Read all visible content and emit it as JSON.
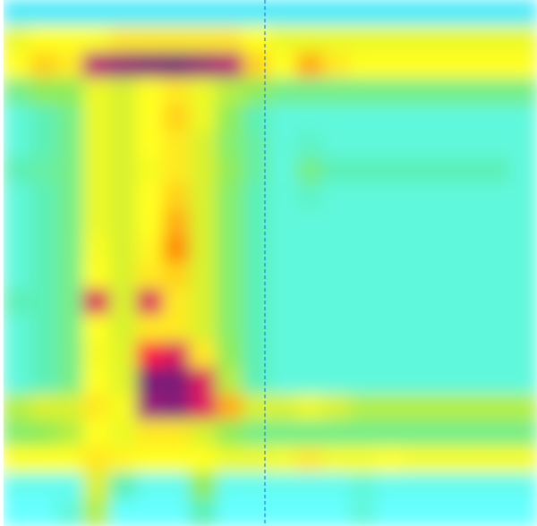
{
  "chart_data": {
    "type": "heatmap",
    "title": "",
    "xlabel": "",
    "ylabel": "",
    "grid": false,
    "legend": "none",
    "colorscale": [
      "#33d6f2",
      "#66ffff",
      "#5cf0b8",
      "#8fec5a",
      "#d8f22e",
      "#ffff22",
      "#ffd21e",
      "#ff8a10",
      "#ff1a4a",
      "#b81c78",
      "#7a1f78"
    ],
    "marker_color": "#1a66ff",
    "rows": 20,
    "cols": 20,
    "values": [
      [
        0.05,
        0.05,
        0.05,
        0.05,
        0.05,
        0.05,
        0.05,
        0.05,
        0.05,
        0.05,
        0.05,
        0.05,
        0.05,
        0.05,
        0.05,
        0.05,
        0.05,
        0.05,
        0.05,
        0.05
      ],
      [
        0.45,
        0.5,
        0.5,
        0.5,
        0.55,
        0.55,
        0.55,
        0.55,
        0.55,
        0.5,
        0.45,
        0.45,
        0.45,
        0.45,
        0.45,
        0.45,
        0.45,
        0.45,
        0.45,
        0.45
      ],
      [
        0.5,
        0.6,
        0.55,
        0.9,
        0.95,
        0.98,
        1.0,
        0.95,
        0.9,
        0.6,
        0.5,
        0.65,
        0.55,
        0.5,
        0.5,
        0.5,
        0.5,
        0.5,
        0.5,
        0.5
      ],
      [
        0.25,
        0.3,
        0.3,
        0.45,
        0.4,
        0.5,
        0.55,
        0.45,
        0.35,
        0.3,
        0.25,
        0.25,
        0.25,
        0.25,
        0.25,
        0.25,
        0.25,
        0.25,
        0.25,
        0.25
      ],
      [
        0.15,
        0.2,
        0.25,
        0.45,
        0.4,
        0.5,
        0.6,
        0.45,
        0.3,
        0.2,
        0.15,
        0.15,
        0.15,
        0.15,
        0.15,
        0.15,
        0.15,
        0.15,
        0.15,
        0.15
      ],
      [
        0.15,
        0.2,
        0.25,
        0.45,
        0.4,
        0.5,
        0.55,
        0.4,
        0.28,
        0.22,
        0.15,
        0.18,
        0.15,
        0.15,
        0.15,
        0.15,
        0.15,
        0.15,
        0.15,
        0.15
      ],
      [
        0.2,
        0.22,
        0.25,
        0.45,
        0.4,
        0.48,
        0.55,
        0.4,
        0.3,
        0.22,
        0.15,
        0.25,
        0.2,
        0.2,
        0.2,
        0.2,
        0.2,
        0.2,
        0.2,
        0.15
      ],
      [
        0.15,
        0.2,
        0.25,
        0.45,
        0.4,
        0.5,
        0.6,
        0.4,
        0.28,
        0.2,
        0.15,
        0.18,
        0.15,
        0.15,
        0.15,
        0.15,
        0.15,
        0.15,
        0.15,
        0.15
      ],
      [
        0.15,
        0.2,
        0.25,
        0.45,
        0.4,
        0.5,
        0.65,
        0.4,
        0.28,
        0.2,
        0.15,
        0.15,
        0.15,
        0.15,
        0.15,
        0.15,
        0.15,
        0.15,
        0.15,
        0.15
      ],
      [
        0.15,
        0.2,
        0.25,
        0.48,
        0.4,
        0.52,
        0.7,
        0.4,
        0.28,
        0.2,
        0.15,
        0.15,
        0.15,
        0.15,
        0.15,
        0.15,
        0.15,
        0.15,
        0.15,
        0.15
      ],
      [
        0.15,
        0.2,
        0.25,
        0.5,
        0.4,
        0.55,
        0.6,
        0.4,
        0.28,
        0.2,
        0.15,
        0.15,
        0.15,
        0.15,
        0.15,
        0.15,
        0.15,
        0.15,
        0.15,
        0.15
      ],
      [
        0.2,
        0.2,
        0.25,
        0.85,
        0.4,
        0.85,
        0.55,
        0.4,
        0.28,
        0.2,
        0.15,
        0.15,
        0.15,
        0.15,
        0.15,
        0.15,
        0.15,
        0.15,
        0.15,
        0.15
      ],
      [
        0.15,
        0.2,
        0.25,
        0.5,
        0.4,
        0.55,
        0.55,
        0.4,
        0.28,
        0.2,
        0.15,
        0.15,
        0.15,
        0.15,
        0.15,
        0.15,
        0.15,
        0.15,
        0.15,
        0.15
      ],
      [
        0.15,
        0.2,
        0.25,
        0.48,
        0.42,
        0.8,
        0.85,
        0.55,
        0.3,
        0.2,
        0.15,
        0.15,
        0.15,
        0.15,
        0.15,
        0.15,
        0.15,
        0.15,
        0.15,
        0.15
      ],
      [
        0.15,
        0.2,
        0.25,
        0.5,
        0.42,
        1.0,
        1.0,
        0.85,
        0.35,
        0.2,
        0.15,
        0.15,
        0.15,
        0.15,
        0.15,
        0.15,
        0.15,
        0.15,
        0.15,
        0.15
      ],
      [
        0.35,
        0.4,
        0.4,
        0.55,
        0.48,
        0.95,
        0.98,
        0.85,
        0.65,
        0.4,
        0.4,
        0.45,
        0.4,
        0.35,
        0.35,
        0.35,
        0.35,
        0.35,
        0.35,
        0.35
      ],
      [
        0.28,
        0.3,
        0.35,
        0.5,
        0.45,
        0.55,
        0.55,
        0.4,
        0.3,
        0.25,
        0.25,
        0.25,
        0.25,
        0.25,
        0.25,
        0.25,
        0.25,
        0.25,
        0.25,
        0.25
      ],
      [
        0.5,
        0.5,
        0.5,
        0.55,
        0.52,
        0.5,
        0.5,
        0.5,
        0.45,
        0.45,
        0.48,
        0.55,
        0.48,
        0.48,
        0.5,
        0.48,
        0.48,
        0.48,
        0.48,
        0.48
      ],
      [
        0.12,
        0.12,
        0.12,
        0.4,
        0.2,
        0.12,
        0.12,
        0.3,
        0.12,
        0.12,
        0.12,
        0.12,
        0.12,
        0.15,
        0.12,
        0.12,
        0.12,
        0.12,
        0.12,
        0.12
      ],
      [
        0.1,
        0.1,
        0.15,
        0.35,
        0.1,
        0.1,
        0.1,
        0.2,
        0.1,
        0.1,
        0.1,
        0.1,
        0.1,
        0.15,
        0.1,
        0.1,
        0.1,
        0.1,
        0.1,
        0.1
      ]
    ],
    "marker_col": 9.8
  }
}
